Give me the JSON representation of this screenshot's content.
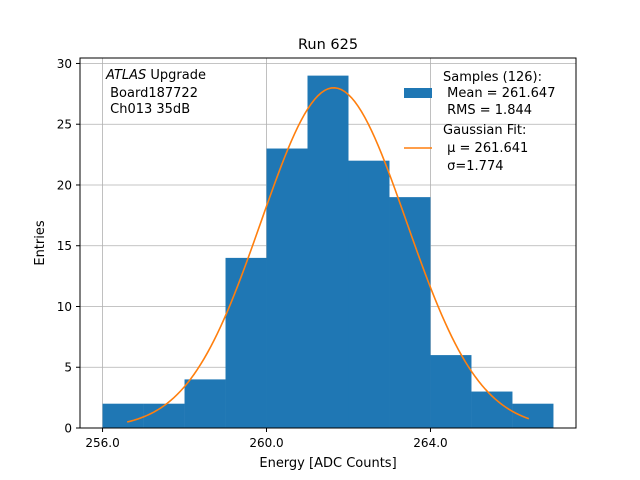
{
  "chart_data": {
    "type": "bar",
    "title": "Run 625",
    "xlabel": "Energy [ADC Counts]",
    "ylabel": "Entries",
    "xlim": [
      255.45,
      267.55
    ],
    "ylim": [
      0,
      30.45
    ],
    "xticks": [
      256.0,
      260.0,
      264.0
    ],
    "xtick_labels": [
      "256.0",
      "260.0",
      "264.0"
    ],
    "yticks": [
      0,
      5,
      10,
      15,
      20,
      25,
      30
    ],
    "ytick_labels": [
      "0",
      "5",
      "10",
      "15",
      "20",
      "25",
      "30"
    ],
    "grid": true,
    "bin_edges": [
      256,
      257,
      258,
      259,
      260,
      261,
      262,
      263,
      264,
      265,
      266,
      267
    ],
    "counts": [
      2,
      2,
      4,
      14,
      23,
      29,
      22,
      19,
      6,
      3,
      2
    ],
    "bar_color": "#1f77b4",
    "fit": {
      "amplitude": 28,
      "mu": 261.641,
      "sigma": 1.774,
      "x_range": [
        256.6,
        266.4
      ],
      "color": "#ff7f0e"
    },
    "annotation": {
      "italic": "ATLAS",
      "line1_rest": " Upgrade",
      "line2": " Board187722",
      "line3": " Ch013 35dB"
    },
    "legend": {
      "position": "top-right",
      "samples_lines": [
        "Samples (126):",
        " Mean = 261.647",
        " RMS = 1.844"
      ],
      "fit_lines": [
        "Gaussian Fit:",
        " μ = 261.641",
        " σ=1.774"
      ]
    }
  }
}
